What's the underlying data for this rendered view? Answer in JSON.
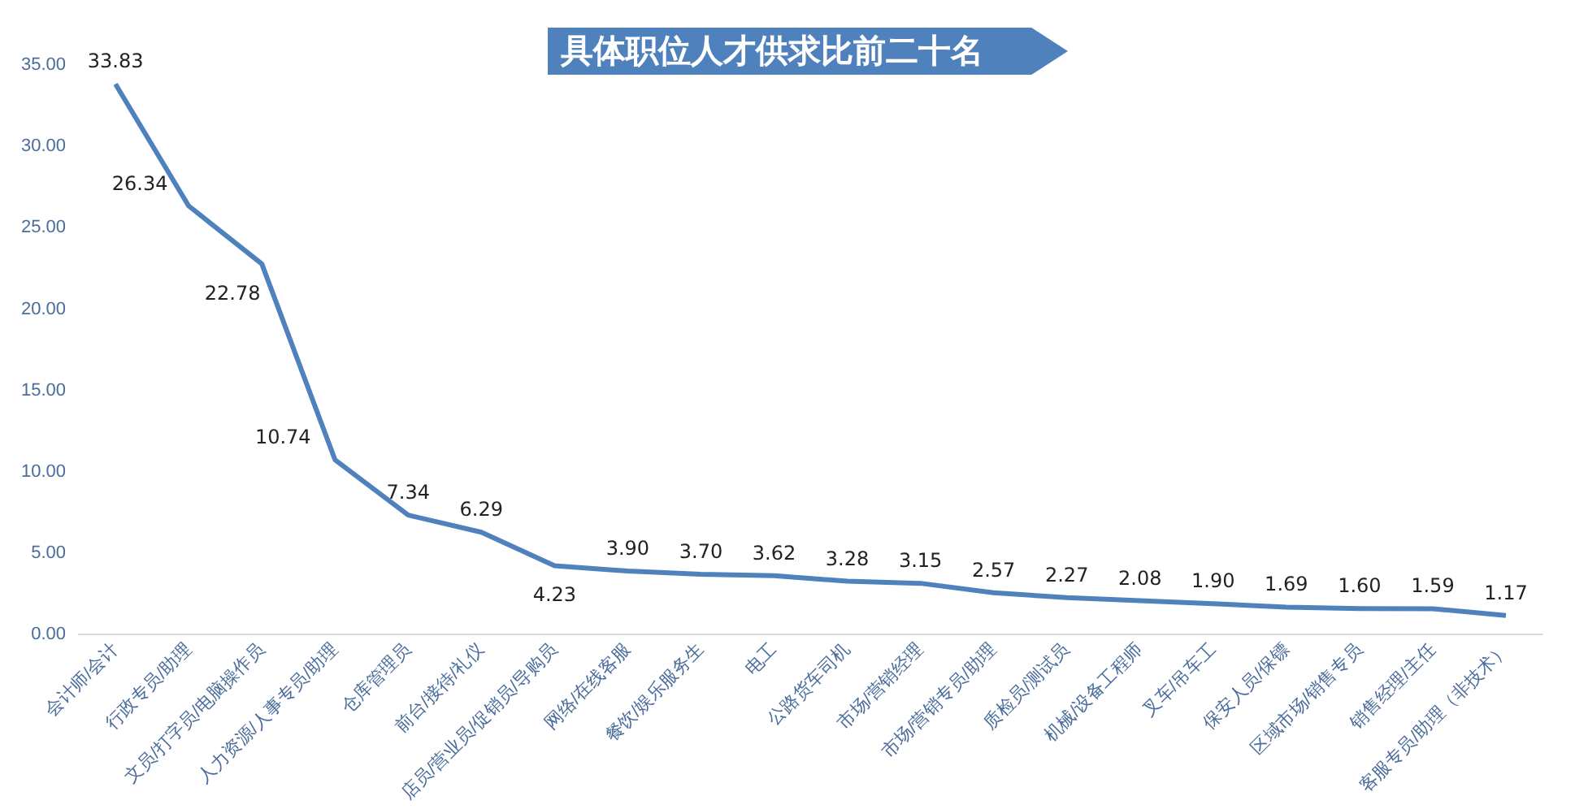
{
  "chart_data": {
    "type": "line",
    "title": "具体职位人才供求比前二十名",
    "categories": [
      "会计师/会计",
      "行政专员/助理",
      "文员/打字员/电脑操作员",
      "人力资源/人事专员/助理",
      "仓库管理员",
      "前台/接待/礼仪",
      "店员/营业员/促销员/导购员",
      "网络/在线客服",
      "餐饮/娱乐服务生",
      "电工",
      "公路货车司机",
      "市场/营销经理",
      "市场/营销专员/助理",
      "质检员/测试员",
      "机械/设备工程师",
      "叉车/吊车工",
      "保安人员/保镖",
      "区域市场/销售专员",
      "销售经理/主任",
      "客服专员/助理（非技术）"
    ],
    "series": [
      {
        "color": "#4f81bd",
        "values": [
          33.83,
          26.34,
          22.78,
          10.74,
          7.34,
          6.29,
          4.23,
          3.9,
          3.7,
          3.62,
          3.28,
          3.15,
          2.57,
          2.27,
          2.08,
          1.9,
          1.69,
          1.6,
          1.59,
          1.17
        ],
        "value_labels": [
          "33.83",
          "26.34",
          "22.78",
          "10.74",
          "7.34",
          "6.29",
          "4.23",
          "3.90",
          "3.70",
          "3.62",
          "3.28",
          "3.15",
          "2.57",
          "2.27",
          "2.08",
          "1.90",
          "1.69",
          "1.60",
          "1.59",
          "1.17"
        ]
      }
    ],
    "ylim": [
      0,
      35
    ],
    "yticks": [
      {
        "value": 0,
        "label": "0.00"
      },
      {
        "value": 5,
        "label": "5.00"
      },
      {
        "value": 10,
        "label": "10.00"
      },
      {
        "value": 15,
        "label": "15.00"
      },
      {
        "value": 20,
        "label": "20.00"
      },
      {
        "value": 25,
        "label": "25.00"
      },
      {
        "value": 30,
        "label": "30.00"
      },
      {
        "value": 35,
        "label": "35.00"
      }
    ],
    "grid": false,
    "legend": false,
    "marker": "none",
    "line_style": "solid"
  }
}
